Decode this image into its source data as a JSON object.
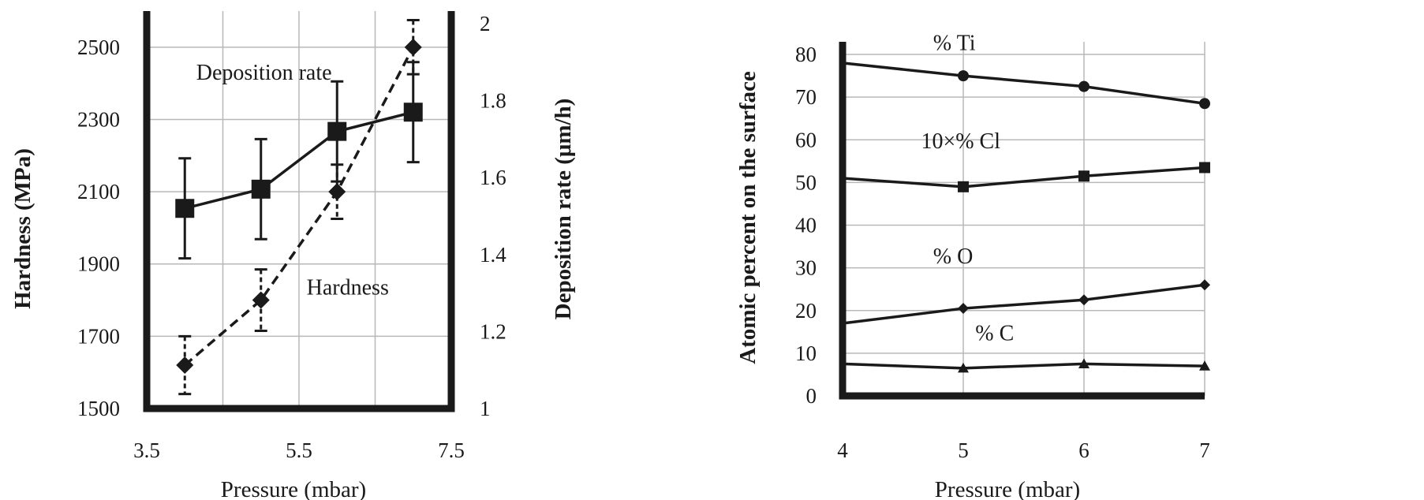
{
  "chart_data": [
    {
      "type": "line",
      "xlabel": "Pressure (mbar)",
      "ylabel": "Hardness (MPa)",
      "y2label": "Deposition rate (μm/h)",
      "xlim": [
        3.5,
        7.5
      ],
      "ylim": [
        1500,
        2600
      ],
      "y2lim": [
        1,
        2
      ],
      "x_ticks": [
        "3.5",
        "5.5",
        "7.5"
      ],
      "y_ticks": [
        "1500",
        "1700",
        "1900",
        "2100",
        "2300",
        "2500"
      ],
      "y2_ticks": [
        "1",
        "1.2",
        "1.4",
        "1.6",
        "1.8",
        "2"
      ],
      "grid": true,
      "series": [
        {
          "label": "Deposition rate",
          "axis": "right",
          "marker": "square",
          "line": "solid",
          "x": [
            4,
            5,
            6,
            7
          ],
          "values": [
            1.52,
            1.57,
            1.72,
            1.77
          ],
          "error": [
            0.13,
            0.13,
            0.13,
            0.13
          ]
        },
        {
          "label": "Hardness",
          "axis": "left",
          "marker": "diamond",
          "line": "dashed",
          "x": [
            4,
            5,
            6,
            7
          ],
          "values": [
            1620,
            1800,
            2100,
            2500
          ],
          "error": [
            80,
            85,
            75,
            75
          ]
        }
      ],
      "annotations": [
        {
          "text": "Deposition rate",
          "x": 4.15,
          "y": 2410
        },
        {
          "text": "Hardness",
          "x": 5.6,
          "y": 1815
        }
      ]
    },
    {
      "type": "line",
      "xlabel": "Pressure (mbar)",
      "ylabel": "Atomic percent on the surface",
      "xlim": [
        4,
        7
      ],
      "ylim": [
        0,
        85
      ],
      "x_ticks": [
        "4",
        "5",
        "6",
        "7"
      ],
      "y_ticks": [
        "0",
        "10",
        "20",
        "30",
        "40",
        "50",
        "60",
        "70",
        "80"
      ],
      "grid": true,
      "series": [
        {
          "label": "% Ti",
          "marker": "circle",
          "x": [
            4,
            5,
            6,
            7
          ],
          "values": [
            78,
            75,
            72.5,
            68.5
          ]
        },
        {
          "label": "10×% Cl",
          "marker": "square",
          "x": [
            4,
            5,
            6,
            7
          ],
          "values": [
            51,
            49,
            51.5,
            53.5
          ]
        },
        {
          "label": "% O",
          "marker": "diamond",
          "x": [
            4,
            5,
            6,
            7
          ],
          "values": [
            17,
            20.5,
            22.5,
            26
          ]
        },
        {
          "label": "% C",
          "marker": "triangle",
          "x": [
            4,
            5,
            6,
            7
          ],
          "values": [
            7.5,
            6.5,
            7.5,
            7
          ]
        }
      ],
      "annotations": [
        {
          "text": "% Ti",
          "x": 4.75,
          "y": 81
        },
        {
          "text": "10×% Cl",
          "x": 4.65,
          "y": 58
        },
        {
          "text": "% O",
          "x": 4.75,
          "y": 31
        },
        {
          "text": "% C",
          "x": 5.1,
          "y": 13
        }
      ]
    }
  ]
}
